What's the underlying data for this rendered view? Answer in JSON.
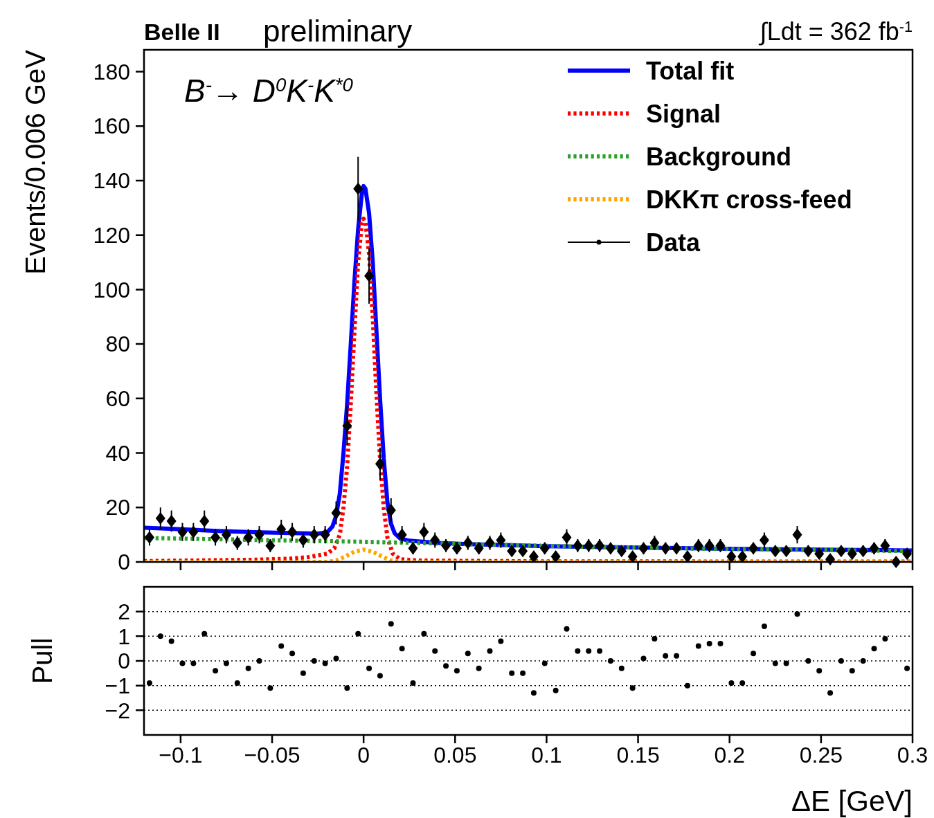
{
  "chart_data": [
    {
      "type": "line",
      "title": "Belle II",
      "subtitle": "preliminary",
      "ylabel": "Events/0.006 GeV",
      "annotations": [
        "B$^{-}$→ D$^{0}$K$^{-}$K$^{*0}$",
        "∫Ldt = 362 fb$^{-1}$"
      ],
      "xlim": [
        -0.12,
        0.3
      ],
      "ylim": [
        0,
        188
      ],
      "xticks": [
        {
          "value": -0.1,
          "label": null
        },
        {
          "value": -0.05,
          "label": null
        },
        {
          "value": 0,
          "label": null
        },
        {
          "value": 0.05,
          "label": null
        },
        {
          "value": 0.1,
          "label": null
        },
        {
          "value": 0.15,
          "label": null
        },
        {
          "value": 0.2,
          "label": null
        },
        {
          "value": 0.25,
          "label": null
        },
        {
          "value": 0.3,
          "label": null
        }
      ],
      "yticks": [
        0,
        20,
        40,
        60,
        80,
        100,
        120,
        140,
        160,
        180
      ],
      "tick_labels": "y",
      "legend": "top right",
      "series": [
        {
          "name": "Total fit",
          "type": "line",
          "color": "#0000ff",
          "line_style": "solid",
          "x": [
            -0.12,
            -0.1,
            -0.08,
            -0.06,
            -0.04,
            -0.025,
            -0.02,
            -0.017,
            -0.015,
            -0.013,
            -0.011,
            -0.009,
            -0.007,
            -0.005,
            -0.003,
            -0.001,
            0,
            0.001,
            0.003,
            0.005,
            0.007,
            0.009,
            0.011,
            0.013,
            0.015,
            0.017,
            0.02,
            0.025,
            0.04,
            0.06,
            0.1,
            0.15,
            0.2,
            0.25,
            0.3
          ],
          "values": [
            12.6,
            12,
            11.4,
            10.9,
            10.6,
            10.4,
            10.8,
            13,
            17,
            25,
            40,
            58,
            80,
            103,
            122,
            135,
            138,
            137,
            128,
            110,
            85,
            60,
            38,
            22,
            14,
            10.5,
            8.6,
            7.8,
            7,
            6.5,
            5.8,
            5.3,
            4.8,
            4.5,
            4.2
          ]
        },
        {
          "name": "Signal",
          "type": "line",
          "color": "#ff0000",
          "line_style": "dotted",
          "x": [
            -0.12,
            -0.06,
            -0.04,
            -0.03,
            -0.02,
            -0.016,
            -0.013,
            -0.011,
            -0.009,
            -0.007,
            -0.005,
            -0.003,
            -0.001,
            0,
            0.001,
            0.003,
            0.005,
            0.007,
            0.009,
            0.011,
            0.013,
            0.016,
            0.02,
            0.03,
            0.1,
            0.3
          ],
          "values": [
            0.3,
            0.8,
            1.2,
            1.8,
            3,
            5,
            10,
            20,
            35,
            58,
            85,
            110,
            124,
            126,
            125,
            113,
            90,
            62,
            38,
            20,
            9,
            3,
            1,
            0.5,
            0.2,
            0.1
          ]
        },
        {
          "name": "Background",
          "type": "line",
          "color": "#2ca02c",
          "line_style": "dotted",
          "x": [
            -0.12,
            -0.06,
            0,
            0.06,
            0.12,
            0.18,
            0.24,
            0.3
          ],
          "values": [
            8.8,
            8.1,
            7.4,
            6.5,
            5.6,
            4.9,
            4.4,
            4
          ]
        },
        {
          "name": "DKKπ cross-feed",
          "type": "line",
          "color": "#ffa500",
          "line_style": "dotted",
          "x": [
            -0.12,
            -0.02,
            -0.015,
            -0.01,
            -0.005,
            0,
            0.005,
            0.01,
            0.015,
            0.02,
            0.3
          ],
          "values": [
            0,
            0,
            0.5,
            2,
            3.8,
            4.5,
            3.8,
            2,
            0.5,
            0,
            0
          ]
        },
        {
          "name": "Data",
          "type": "scatter",
          "color": "#000000",
          "marker": "diamond",
          "x": [
            -0.117,
            -0.111,
            -0.105,
            -0.099,
            -0.093,
            -0.087,
            -0.081,
            -0.075,
            -0.069,
            -0.063,
            -0.057,
            -0.051,
            -0.045,
            -0.039,
            -0.033,
            -0.027,
            -0.021,
            -0.015,
            -0.009,
            -0.003,
            0.003,
            0.009,
            0.015,
            0.021,
            0.027,
            0.033,
            0.039,
            0.045,
            0.051,
            0.057,
            0.063,
            0.069,
            0.075,
            0.081,
            0.087,
            0.093,
            0.099,
            0.105,
            0.111,
            0.117,
            0.123,
            0.129,
            0.135,
            0.141,
            0.147,
            0.153,
            0.159,
            0.165,
            0.171,
            0.177,
            0.183,
            0.189,
            0.195,
            0.201,
            0.207,
            0.213,
            0.219,
            0.225,
            0.231,
            0.237,
            0.243,
            0.249,
            0.255,
            0.261,
            0.267,
            0.273,
            0.279,
            0.285,
            0.291,
            0.297
          ],
          "values": [
            9,
            16,
            15,
            11,
            11,
            15,
            9,
            10,
            7,
            9,
            10,
            6,
            12,
            11,
            8,
            10,
            10,
            18,
            50,
            137,
            105,
            36,
            19,
            10,
            5,
            11,
            8,
            6,
            5,
            7,
            5,
            7,
            8,
            4,
            4,
            2,
            5,
            2,
            9,
            6,
            6,
            6,
            5,
            4,
            2,
            5,
            7,
            5,
            5,
            2,
            6,
            6,
            6,
            2,
            2,
            5,
            8,
            4,
            4,
            10,
            4,
            3,
            1,
            4,
            3,
            4,
            5,
            6,
            0,
            3
          ],
          "errors": [
            3,
            4,
            3.9,
            3.3,
            3.3,
            3.9,
            3,
            3.2,
            2.6,
            3,
            3.2,
            2.4,
            3.5,
            3.3,
            2.8,
            3.2,
            3.2,
            4.2,
            7.1,
            11.7,
            10.2,
            6,
            4.4,
            3.2,
            2.2,
            3.3,
            2.8,
            2.4,
            2.2,
            2.6,
            2.2,
            2.6,
            2.8,
            2,
            2,
            1.4,
            2.2,
            1.4,
            3,
            2.4,
            2.4,
            2.4,
            2.2,
            2,
            1.4,
            2.2,
            2.6,
            2.2,
            2.2,
            1.4,
            2.4,
            2.4,
            2.4,
            1.4,
            1.4,
            2.2,
            2.8,
            2,
            2,
            3.2,
            2,
            1.7,
            1,
            2,
            1.7,
            2,
            2.2,
            2.4,
            null,
            1.7
          ]
        }
      ]
    },
    {
      "type": "scatter",
      "ylabel": "Pull",
      "xlabel": "ΔE [GeV]",
      "xlim": [
        -0.12,
        0.3
      ],
      "ylim": [
        -3,
        3
      ],
      "xticks": [
        {
          "value": -0.1,
          "label": "−0.1"
        },
        {
          "value": -0.05,
          "label": "−0.05"
        },
        0,
        0.05,
        0.1,
        0.15,
        0.2,
        0.25,
        0.3
      ],
      "yticks": [
        {
          "value": -2,
          "label": "−2"
        },
        {
          "value": -1,
          "label": "−1"
        },
        0,
        1,
        2
      ],
      "grid": "y",
      "marker": "circle",
      "color": "#000000",
      "x": [
        -0.117,
        -0.111,
        -0.105,
        -0.099,
        -0.093,
        -0.087,
        -0.081,
        -0.075,
        -0.069,
        -0.063,
        -0.057,
        -0.051,
        -0.045,
        -0.039,
        -0.033,
        -0.027,
        -0.021,
        -0.015,
        -0.009,
        -0.003,
        0.003,
        0.009,
        0.015,
        0.021,
        0.027,
        0.033,
        0.039,
        0.045,
        0.051,
        0.057,
        0.063,
        0.069,
        0.075,
        0.081,
        0.087,
        0.093,
        0.099,
        0.105,
        0.111,
        0.117,
        0.123,
        0.129,
        0.135,
        0.141,
        0.147,
        0.153,
        0.159,
        0.165,
        0.171,
        0.177,
        0.183,
        0.189,
        0.195,
        0.201,
        0.207,
        0.213,
        0.219,
        0.225,
        0.231,
        0.237,
        0.243,
        0.249,
        0.255,
        0.261,
        0.267,
        0.273,
        0.279,
        0.285,
        0.297
      ],
      "values": [
        -0.9,
        1,
        0.8,
        -0.1,
        -0.1,
        1.1,
        -0.4,
        -0.1,
        -0.9,
        -0.3,
        0,
        -1.1,
        0.6,
        0.3,
        -0.5,
        0,
        -0.1,
        0.1,
        -1.1,
        1.1,
        -0.3,
        -0.6,
        1.5,
        0.5,
        -0.9,
        1.1,
        0.4,
        -0.2,
        -0.4,
        0.3,
        -0.3,
        0.4,
        0.8,
        -0.5,
        -0.5,
        -1.3,
        -0.1,
        -1.2,
        1.3,
        0.4,
        0.4,
        0.4,
        0,
        -0.3,
        -1.1,
        0.1,
        0.9,
        0.2,
        0.2,
        -1,
        0.6,
        0.7,
        0.7,
        -0.9,
        -0.9,
        0.3,
        1.4,
        -0.1,
        -0.1,
        1.9,
        0,
        -0.4,
        -1.3,
        0,
        -0.4,
        0,
        0.5,
        0.9,
        -0.3
      ]
    }
  ]
}
